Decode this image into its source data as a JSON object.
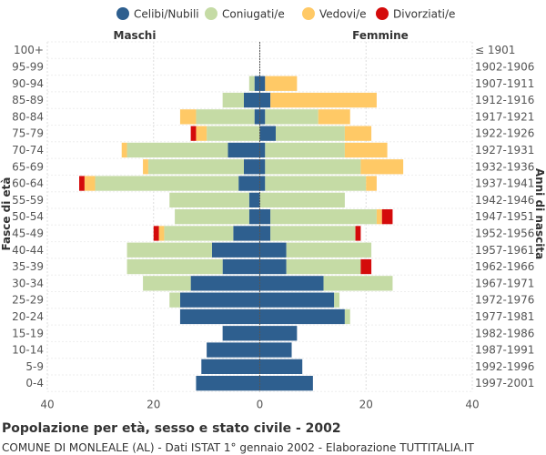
{
  "chart_data": {
    "type": "bar",
    "orientation": "horizontal-diverging",
    "title": "Popolazione per età, sesso e stato civile - 2002",
    "subtitle": "COMUNE DI MONLEALE (AL) - Dati ISTAT 1° gennaio 2002 - Elaborazione TUTTITALIA.IT",
    "left_header": "Maschi",
    "right_header": "Femmine",
    "ylabel_left": "Fasce di età",
    "ylabel_right": "Anni di nascita",
    "xlim": [
      -40,
      40
    ],
    "xticks": [
      "40",
      "20",
      "0",
      "20",
      "40"
    ],
    "xtick_values": [
      -40,
      -20,
      0,
      20,
      40
    ],
    "grid": true,
    "legend_position": "top",
    "series": [
      {
        "name": "Celibi/Nubili",
        "color": "#2e5f8f"
      },
      {
        "name": "Coniugati/e",
        "color": "#c5dba5"
      },
      {
        "name": "Vedovi/e",
        "color": "#ffc966"
      },
      {
        "name": "Divorziati/e",
        "color": "#d40b0b"
      }
    ],
    "categories": [
      "100+",
      "95-99",
      "90-94",
      "85-89",
      "80-84",
      "75-79",
      "70-74",
      "65-69",
      "60-64",
      "55-59",
      "50-54",
      "45-49",
      "40-44",
      "35-39",
      "30-34",
      "25-29",
      "20-24",
      "15-19",
      "10-14",
      "5-9",
      "0-4"
    ],
    "birth_years": [
      "≤ 1901",
      "1902-1906",
      "1907-1911",
      "1912-1916",
      "1917-1921",
      "1922-1926",
      "1927-1931",
      "1932-1936",
      "1937-1941",
      "1942-1946",
      "1947-1951",
      "1952-1956",
      "1957-1961",
      "1962-1966",
      "1967-1971",
      "1972-1976",
      "1977-1981",
      "1982-1986",
      "1987-1991",
      "1992-1996",
      "1997-2001"
    ],
    "males": [
      [
        0,
        0,
        0,
        0
      ],
      [
        0,
        0,
        0,
        0
      ],
      [
        1,
        1,
        0,
        0
      ],
      [
        3,
        4,
        0,
        0
      ],
      [
        1,
        11,
        3,
        0
      ],
      [
        0,
        10,
        2,
        1
      ],
      [
        6,
        19,
        1,
        0
      ],
      [
        3,
        18,
        1,
        0
      ],
      [
        4,
        27,
        2,
        1
      ],
      [
        2,
        15,
        0,
        0
      ],
      [
        2,
        14,
        0,
        0
      ],
      [
        5,
        13,
        1,
        1
      ],
      [
        9,
        16,
        0,
        0
      ],
      [
        7,
        18,
        0,
        0
      ],
      [
        13,
        9,
        0,
        0
      ],
      [
        15,
        2,
        0,
        0
      ],
      [
        15,
        0,
        0,
        0
      ],
      [
        7,
        0,
        0,
        0
      ],
      [
        10,
        0,
        0,
        0
      ],
      [
        11,
        0,
        0,
        0
      ],
      [
        12,
        0,
        0,
        0
      ]
    ],
    "females": [
      [
        0,
        0,
        0,
        0
      ],
      [
        0,
        0,
        0,
        0
      ],
      [
        1,
        0,
        6,
        0
      ],
      [
        2,
        0,
        20,
        0
      ],
      [
        1,
        10,
        6,
        0
      ],
      [
        3,
        13,
        5,
        0
      ],
      [
        1,
        15,
        8,
        0
      ],
      [
        1,
        18,
        8,
        0
      ],
      [
        1,
        19,
        2,
        0
      ],
      [
        0,
        16,
        0,
        0
      ],
      [
        2,
        20,
        1,
        2
      ],
      [
        2,
        16,
        0,
        1
      ],
      [
        5,
        16,
        0,
        0
      ],
      [
        5,
        14,
        0,
        2
      ],
      [
        12,
        13,
        0,
        0
      ],
      [
        14,
        1,
        0,
        0
      ],
      [
        16,
        1,
        0,
        0
      ],
      [
        7,
        0,
        0,
        0
      ],
      [
        6,
        0,
        0,
        0
      ],
      [
        8,
        0,
        0,
        0
      ],
      [
        10,
        0,
        0,
        0
      ]
    ]
  }
}
